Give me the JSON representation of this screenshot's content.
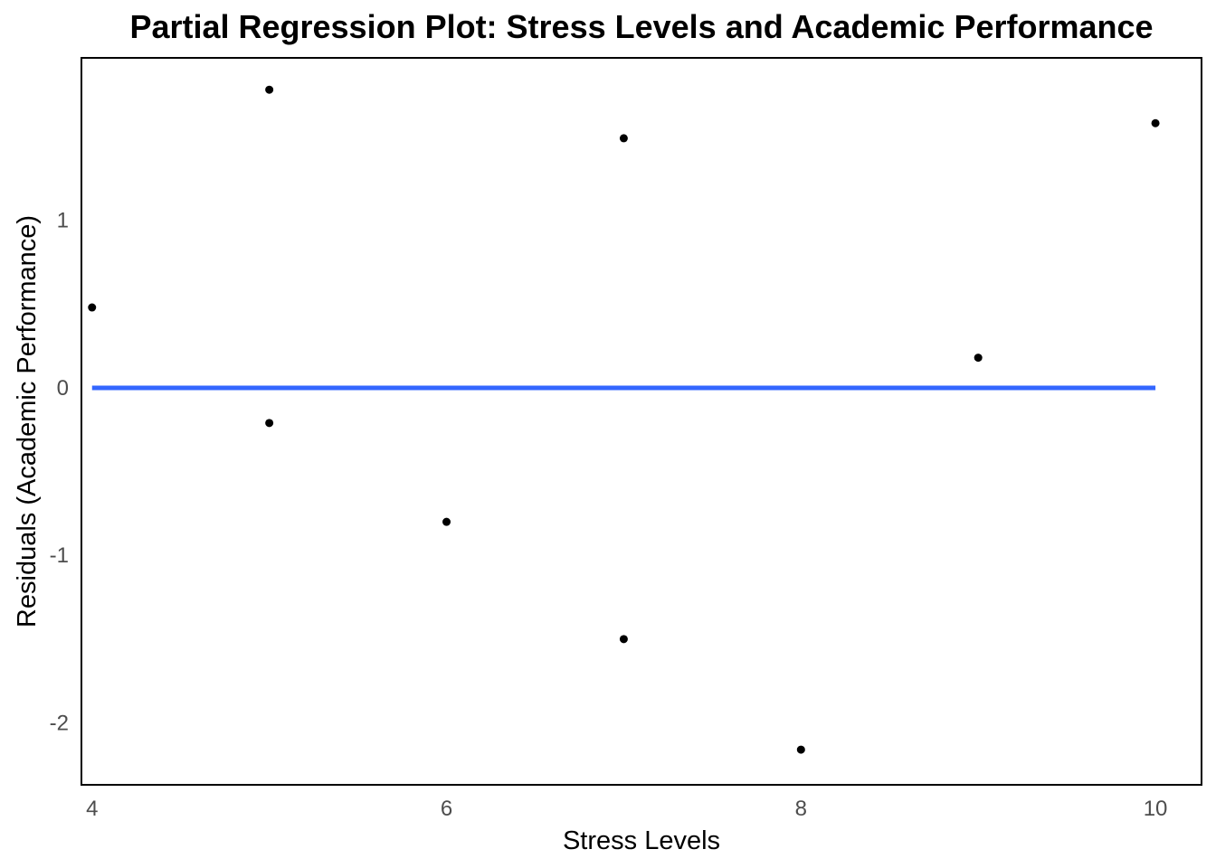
{
  "chart_data": {
    "type": "scatter",
    "title": "Partial Regression Plot: Stress Levels and Academic Performance",
    "xlabel": "Stress Levels",
    "ylabel": "Residuals (Academic Performance)",
    "xlim": [
      3.94,
      10.26
    ],
    "ylim": [
      -2.37,
      1.97
    ],
    "xticks": [
      4,
      6,
      8,
      10
    ],
    "yticks": [
      -2,
      -1,
      0,
      1
    ],
    "xtick_labels": [
      "4",
      "6",
      "8",
      "10"
    ],
    "ytick_labels": [
      "-2",
      "-1",
      "0",
      "1"
    ],
    "grid": false,
    "points": [
      {
        "x": 4,
        "y": 0.48
      },
      {
        "x": 5,
        "y": 1.78
      },
      {
        "x": 5,
        "y": -0.21
      },
      {
        "x": 6,
        "y": -0.8
      },
      {
        "x": 7,
        "y": 1.49
      },
      {
        "x": 7,
        "y": -1.5
      },
      {
        "x": 8,
        "y": -2.16
      },
      {
        "x": 9,
        "y": 0.18
      },
      {
        "x": 10,
        "y": 1.58
      }
    ],
    "fit_line": {
      "x": [
        4,
        10
      ],
      "y": [
        0,
        0
      ],
      "color": "#3366ff"
    },
    "point_color": "#000000"
  }
}
